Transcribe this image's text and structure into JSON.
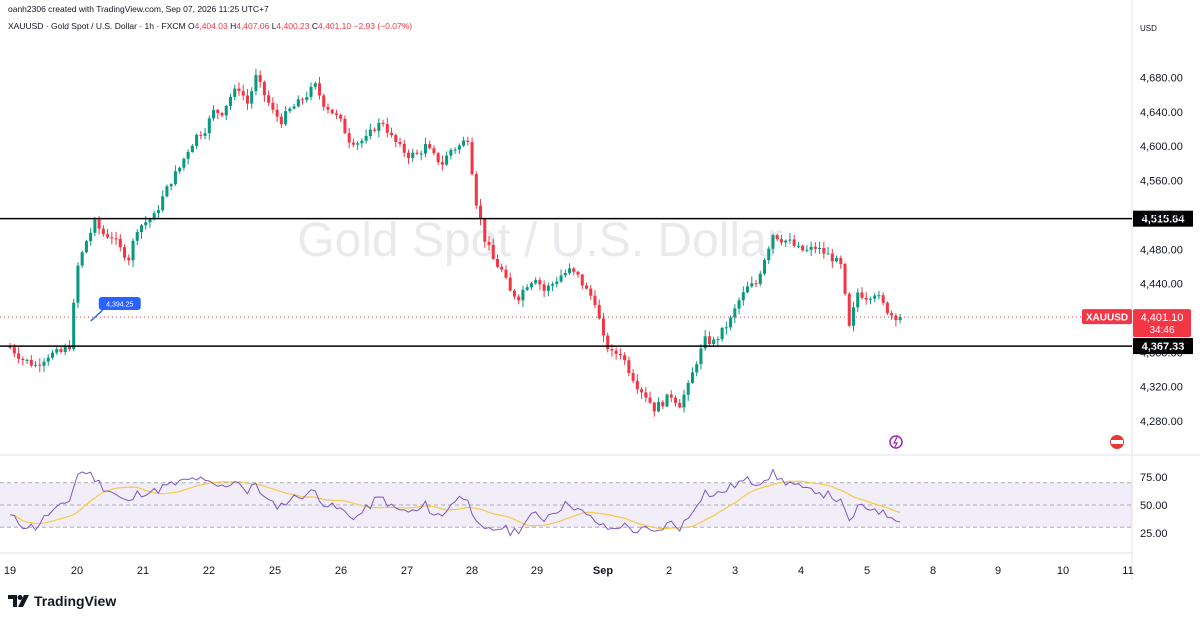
{
  "header": {
    "credit": "oanh2306 created with TradingView.com, Sep 07, 2026 11:25 UTC+7",
    "symbol_desc": "XAUUSD · Gold Spot / U.S. Dollar · 1h · FXCM",
    "o_label": "O",
    "o_value": "4,404.03",
    "h_label": "H",
    "h_value": "4,407.06",
    "l_label": "L",
    "l_value": "4,400.23",
    "c_label": "C",
    "c_value": "4,401.10",
    "change": "−2.93 (−0.07%)"
  },
  "currency": "USD",
  "watermark": "Gold Spot / U.S. Dollar",
  "branding": "TradingView",
  "colors": {
    "up": "#089981",
    "down": "#f23645",
    "rsi": "#7e57c2",
    "rsi_ma": "#f7c948",
    "price_tag": "#f23645",
    "callout": "#2962ff"
  },
  "chart_data": [
    {
      "type": "candlestick",
      "title": "Gold Spot / U.S. Dollar",
      "symbol": "XAUUSD",
      "interval": "1h",
      "ylim": [
        4258,
        4712
      ],
      "y_ticks": [
        4280,
        4320,
        4360,
        4400,
        4440,
        4480,
        4520,
        4560,
        4600,
        4640,
        4680
      ],
      "y_tick_labels": [
        "4,280.00",
        "4,320.00",
        "4,360.00",
        "4,400.00",
        "4,440.00",
        "4,480.00",
        "4,520.00",
        "4,560.00",
        "4,600.00",
        "4,640.00",
        "4,680.00"
      ],
      "x_tick_labels": [
        "19",
        "20",
        "21",
        "22",
        "25",
        "26",
        "27",
        "28",
        "29",
        "Sep",
        "2",
        "3",
        "4",
        "5",
        "8",
        "9",
        "10",
        "11"
      ],
      "close_path": [
        [
          0,
          4366
        ],
        [
          3,
          4352
        ],
        [
          6,
          4345
        ],
        [
          9,
          4357
        ],
        [
          12,
          4360
        ],
        [
          14,
          4368
        ],
        [
          16,
          4460
        ],
        [
          18,
          4490
        ],
        [
          20,
          4510
        ],
        [
          22,
          4498
        ],
        [
          24,
          4495
        ],
        [
          26,
          4480
        ],
        [
          28,
          4470
        ],
        [
          30,
          4505
        ],
        [
          32,
          4512
        ],
        [
          34,
          4518
        ],
        [
          36,
          4540
        ],
        [
          38,
          4560
        ],
        [
          40,
          4575
        ],
        [
          42,
          4596
        ],
        [
          44,
          4612
        ],
        [
          46,
          4620
        ],
        [
          48,
          4640
        ],
        [
          50,
          4640
        ],
        [
          52,
          4658
        ],
        [
          54,
          4668
        ],
        [
          56,
          4650
        ],
        [
          58,
          4680
        ],
        [
          60,
          4660
        ],
        [
          62,
          4640
        ],
        [
          64,
          4630
        ],
        [
          66,
          4642
        ],
        [
          68,
          4650
        ],
        [
          70,
          4660
        ],
        [
          72,
          4670
        ],
        [
          74,
          4650
        ],
        [
          76,
          4640
        ],
        [
          78,
          4628
        ],
        [
          80,
          4608
        ],
        [
          82,
          4605
        ],
        [
          84,
          4608
        ],
        [
          86,
          4622
        ],
        [
          88,
          4628
        ],
        [
          90,
          4610
        ],
        [
          92,
          4598
        ],
        [
          94,
          4590
        ],
        [
          96,
          4590
        ],
        [
          98,
          4600
        ],
        [
          100,
          4588
        ],
        [
          102,
          4580
        ],
        [
          104,
          4596
        ],
        [
          106,
          4600
        ],
        [
          108,
          4610
        ],
        [
          110,
          4535
        ],
        [
          112,
          4492
        ],
        [
          114,
          4468
        ],
        [
          116,
          4455
        ],
        [
          118,
          4430
        ],
        [
          120,
          4425
        ],
        [
          122,
          4440
        ],
        [
          124,
          4448
        ],
        [
          126,
          4432
        ],
        [
          128,
          4440
        ],
        [
          130,
          4450
        ],
        [
          132,
          4455
        ],
        [
          134,
          4448
        ],
        [
          136,
          4432
        ],
        [
          138,
          4420
        ],
        [
          140,
          4375
        ],
        [
          142,
          4358
        ],
        [
          144,
          4360
        ],
        [
          146,
          4340
        ],
        [
          148,
          4322
        ],
        [
          150,
          4310
        ],
        [
          152,
          4295
        ],
        [
          154,
          4302
        ],
        [
          156,
          4310
        ],
        [
          158,
          4300
        ],
        [
          160,
          4320
        ],
        [
          162,
          4350
        ],
        [
          164,
          4374
        ],
        [
          166,
          4372
        ],
        [
          168,
          4384
        ],
        [
          170,
          4398
        ],
        [
          172,
          4420
        ],
        [
          174,
          4435
        ],
        [
          176,
          4440
        ],
        [
          178,
          4470
        ],
        [
          180,
          4498
        ],
        [
          182,
          4492
        ],
        [
          184,
          4488
        ],
        [
          186,
          4480
        ],
        [
          188,
          4478
        ],
        [
          190,
          4482
        ],
        [
          192,
          4476
        ],
        [
          194,
          4470
        ],
        [
          196,
          4460
        ],
        [
          198,
          4388
        ],
        [
          200,
          4430
        ],
        [
          202,
          4425
        ],
        [
          204,
          4430
        ],
        [
          206,
          4415
        ],
        [
          208,
          4404
        ],
        [
          210,
          4401.1
        ]
      ],
      "high": 4695,
      "low": 4284,
      "horizontal_lines": [
        4515.64,
        4367.33
      ],
      "horizontal_line_labels": [
        "4,515.64",
        "4,367.33"
      ],
      "current_price": 4401.1,
      "current_price_label": "4,401.10",
      "countdown": "34:46",
      "annotation": {
        "text": "4,394.25",
        "at_bar": 20
      }
    },
    {
      "type": "line",
      "title": "",
      "ylim": [
        15,
        85
      ],
      "y_ticks": [
        25,
        50,
        75
      ],
      "y_tick_labels": [
        "25.00",
        "50.00",
        "75.00"
      ],
      "band": [
        30,
        70
      ],
      "rsi_path": [
        [
          0,
          40
        ],
        [
          3,
          32
        ],
        [
          6,
          30
        ],
        [
          9,
          42
        ],
        [
          12,
          48
        ],
        [
          14,
          55
        ],
        [
          16,
          78
        ],
        [
          18,
          80
        ],
        [
          20,
          74
        ],
        [
          22,
          66
        ],
        [
          24,
          62
        ],
        [
          26,
          56
        ],
        [
          28,
          52
        ],
        [
          30,
          60
        ],
        [
          32,
          62
        ],
        [
          34,
          62
        ],
        [
          36,
          66
        ],
        [
          38,
          68
        ],
        [
          40,
          70
        ],
        [
          42,
          72
        ],
        [
          44,
          74
        ],
        [
          46,
          70
        ],
        [
          48,
          68
        ],
        [
          50,
          66
        ],
        [
          52,
          70
        ],
        [
          54,
          72
        ],
        [
          56,
          60
        ],
        [
          58,
          70
        ],
        [
          60,
          56
        ],
        [
          62,
          50
        ],
        [
          64,
          50
        ],
        [
          66,
          55
        ],
        [
          68,
          58
        ],
        [
          70,
          60
        ],
        [
          72,
          62
        ],
        [
          74,
          52
        ],
        [
          76,
          48
        ],
        [
          78,
          46
        ],
        [
          80,
          40
        ],
        [
          82,
          40
        ],
        [
          84,
          46
        ],
        [
          86,
          54
        ],
        [
          88,
          56
        ],
        [
          90,
          48
        ],
        [
          92,
          45
        ],
        [
          94,
          44
        ],
        [
          96,
          44
        ],
        [
          98,
          50
        ],
        [
          100,
          42
        ],
        [
          102,
          40
        ],
        [
          104,
          52
        ],
        [
          106,
          56
        ],
        [
          108,
          58
        ],
        [
          110,
          32
        ],
        [
          112,
          26
        ],
        [
          114,
          28
        ],
        [
          116,
          30
        ],
        [
          118,
          26
        ],
        [
          120,
          28
        ],
        [
          122,
          36
        ],
        [
          124,
          42
        ],
        [
          126,
          38
        ],
        [
          128,
          44
        ],
        [
          130,
          48
        ],
        [
          132,
          52
        ],
        [
          134,
          46
        ],
        [
          136,
          40
        ],
        [
          138,
          36
        ],
        [
          140,
          30
        ],
        [
          142,
          28
        ],
        [
          144,
          32
        ],
        [
          146,
          30
        ],
        [
          148,
          26
        ],
        [
          150,
          28
        ],
        [
          152,
          24
        ],
        [
          154,
          30
        ],
        [
          156,
          34
        ],
        [
          158,
          30
        ],
        [
          160,
          38
        ],
        [
          162,
          52
        ],
        [
          164,
          62
        ],
        [
          166,
          58
        ],
        [
          168,
          62
        ],
        [
          170,
          66
        ],
        [
          172,
          70
        ],
        [
          174,
          72
        ],
        [
          176,
          70
        ],
        [
          178,
          74
        ],
        [
          180,
          78
        ],
        [
          182,
          72
        ],
        [
          184,
          70
        ],
        [
          186,
          66
        ],
        [
          188,
          62
        ],
        [
          190,
          64
        ],
        [
          192,
          60
        ],
        [
          194,
          58
        ],
        [
          196,
          52
        ],
        [
          198,
          34
        ],
        [
          200,
          48
        ],
        [
          202,
          46
        ],
        [
          204,
          48
        ],
        [
          206,
          42
        ],
        [
          208,
          40
        ],
        [
          210,
          38
        ]
      ]
    }
  ]
}
